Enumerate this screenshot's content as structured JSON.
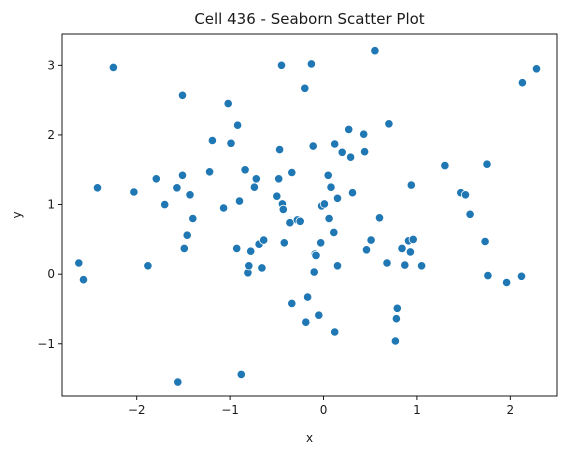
{
  "chart_data": {
    "type": "scatter",
    "title": "Cell 436 - Seaborn Scatter Plot",
    "xlabel": "x",
    "ylabel": "y",
    "xlim": [
      -2.8,
      2.5
    ],
    "ylim": [
      -1.75,
      3.45
    ],
    "xticks": [
      -2,
      -1,
      0,
      1,
      2
    ],
    "xtick_labels": [
      "−2",
      "−1",
      "0",
      "1",
      "2"
    ],
    "yticks": [
      -1,
      0,
      1,
      2,
      3
    ],
    "ytick_labels": [
      "−1",
      "0",
      "1",
      "2",
      "3"
    ],
    "grid": false,
    "marker_color": "#1f77b4",
    "points": [
      [
        -2.62,
        0.16
      ],
      [
        -2.57,
        -0.08
      ],
      [
        -2.42,
        1.24
      ],
      [
        -2.25,
        2.97
      ],
      [
        -2.03,
        1.18
      ],
      [
        -1.88,
        0.12
      ],
      [
        -1.79,
        1.37
      ],
      [
        -1.7,
        1.0
      ],
      [
        -1.57,
        1.24
      ],
      [
        -1.56,
        -1.55
      ],
      [
        -1.51,
        2.57
      ],
      [
        -1.51,
        1.42
      ],
      [
        -1.49,
        0.37
      ],
      [
        -1.46,
        0.56
      ],
      [
        -1.43,
        1.14
      ],
      [
        -1.4,
        0.8
      ],
      [
        -1.22,
        1.47
      ],
      [
        -1.19,
        1.92
      ],
      [
        -1.07,
        0.95
      ],
      [
        -1.02,
        2.45
      ],
      [
        -0.99,
        1.88
      ],
      [
        -0.93,
        0.37
      ],
      [
        -0.92,
        2.14
      ],
      [
        -0.9,
        1.05
      ],
      [
        -0.88,
        -1.44
      ],
      [
        -0.84,
        1.5
      ],
      [
        -0.81,
        0.02
      ],
      [
        -0.8,
        0.12
      ],
      [
        -0.78,
        0.33
      ],
      [
        -0.74,
        1.25
      ],
      [
        -0.72,
        1.37
      ],
      [
        -0.69,
        0.43
      ],
      [
        -0.66,
        0.09
      ],
      [
        -0.64,
        0.49
      ],
      [
        -0.5,
        1.12
      ],
      [
        -0.48,
        1.37
      ],
      [
        -0.47,
        1.79
      ],
      [
        -0.45,
        3.0
      ],
      [
        -0.44,
        1.01
      ],
      [
        -0.43,
        0.93
      ],
      [
        -0.42,
        0.45
      ],
      [
        -0.36,
        0.74
      ],
      [
        -0.34,
        1.46
      ],
      [
        -0.34,
        -0.42
      ],
      [
        -0.28,
        0.78
      ],
      [
        -0.25,
        0.76
      ],
      [
        -0.2,
        2.67
      ],
      [
        -0.19,
        -0.69
      ],
      [
        -0.17,
        -0.33
      ],
      [
        -0.13,
        3.02
      ],
      [
        -0.11,
        1.84
      ],
      [
        -0.1,
        0.03
      ],
      [
        -0.09,
        0.29
      ],
      [
        -0.08,
        0.27
      ],
      [
        -0.05,
        -0.59
      ],
      [
        -0.03,
        0.45
      ],
      [
        -0.02,
        0.98
      ],
      [
        0.01,
        1.01
      ],
      [
        0.05,
        1.42
      ],
      [
        0.06,
        0.8
      ],
      [
        0.08,
        1.25
      ],
      [
        0.11,
        0.6
      ],
      [
        0.12,
        1.87
      ],
      [
        0.12,
        -0.83
      ],
      [
        0.15,
        1.09
      ],
      [
        0.15,
        0.12
      ],
      [
        0.2,
        1.75
      ],
      [
        0.27,
        2.08
      ],
      [
        0.29,
        1.68
      ],
      [
        0.31,
        1.17
      ],
      [
        0.43,
        2.01
      ],
      [
        0.44,
        1.76
      ],
      [
        0.46,
        0.35
      ],
      [
        0.51,
        0.49
      ],
      [
        0.55,
        3.21
      ],
      [
        0.6,
        0.81
      ],
      [
        0.68,
        0.16
      ],
      [
        0.7,
        2.16
      ],
      [
        0.77,
        -0.96
      ],
      [
        0.78,
        -0.64
      ],
      [
        0.79,
        -0.49
      ],
      [
        0.84,
        0.37
      ],
      [
        0.87,
        0.13
      ],
      [
        0.91,
        0.48
      ],
      [
        0.93,
        0.32
      ],
      [
        0.94,
        1.28
      ],
      [
        0.96,
        0.5
      ],
      [
        1.05,
        0.12
      ],
      [
        1.3,
        1.56
      ],
      [
        1.47,
        1.17
      ],
      [
        1.52,
        1.14
      ],
      [
        1.57,
        0.86
      ],
      [
        1.73,
        0.47
      ],
      [
        1.75,
        1.58
      ],
      [
        1.76,
        -0.02
      ],
      [
        1.96,
        -0.12
      ],
      [
        2.12,
        -0.03
      ],
      [
        2.13,
        2.75
      ],
      [
        2.28,
        2.95
      ]
    ]
  }
}
